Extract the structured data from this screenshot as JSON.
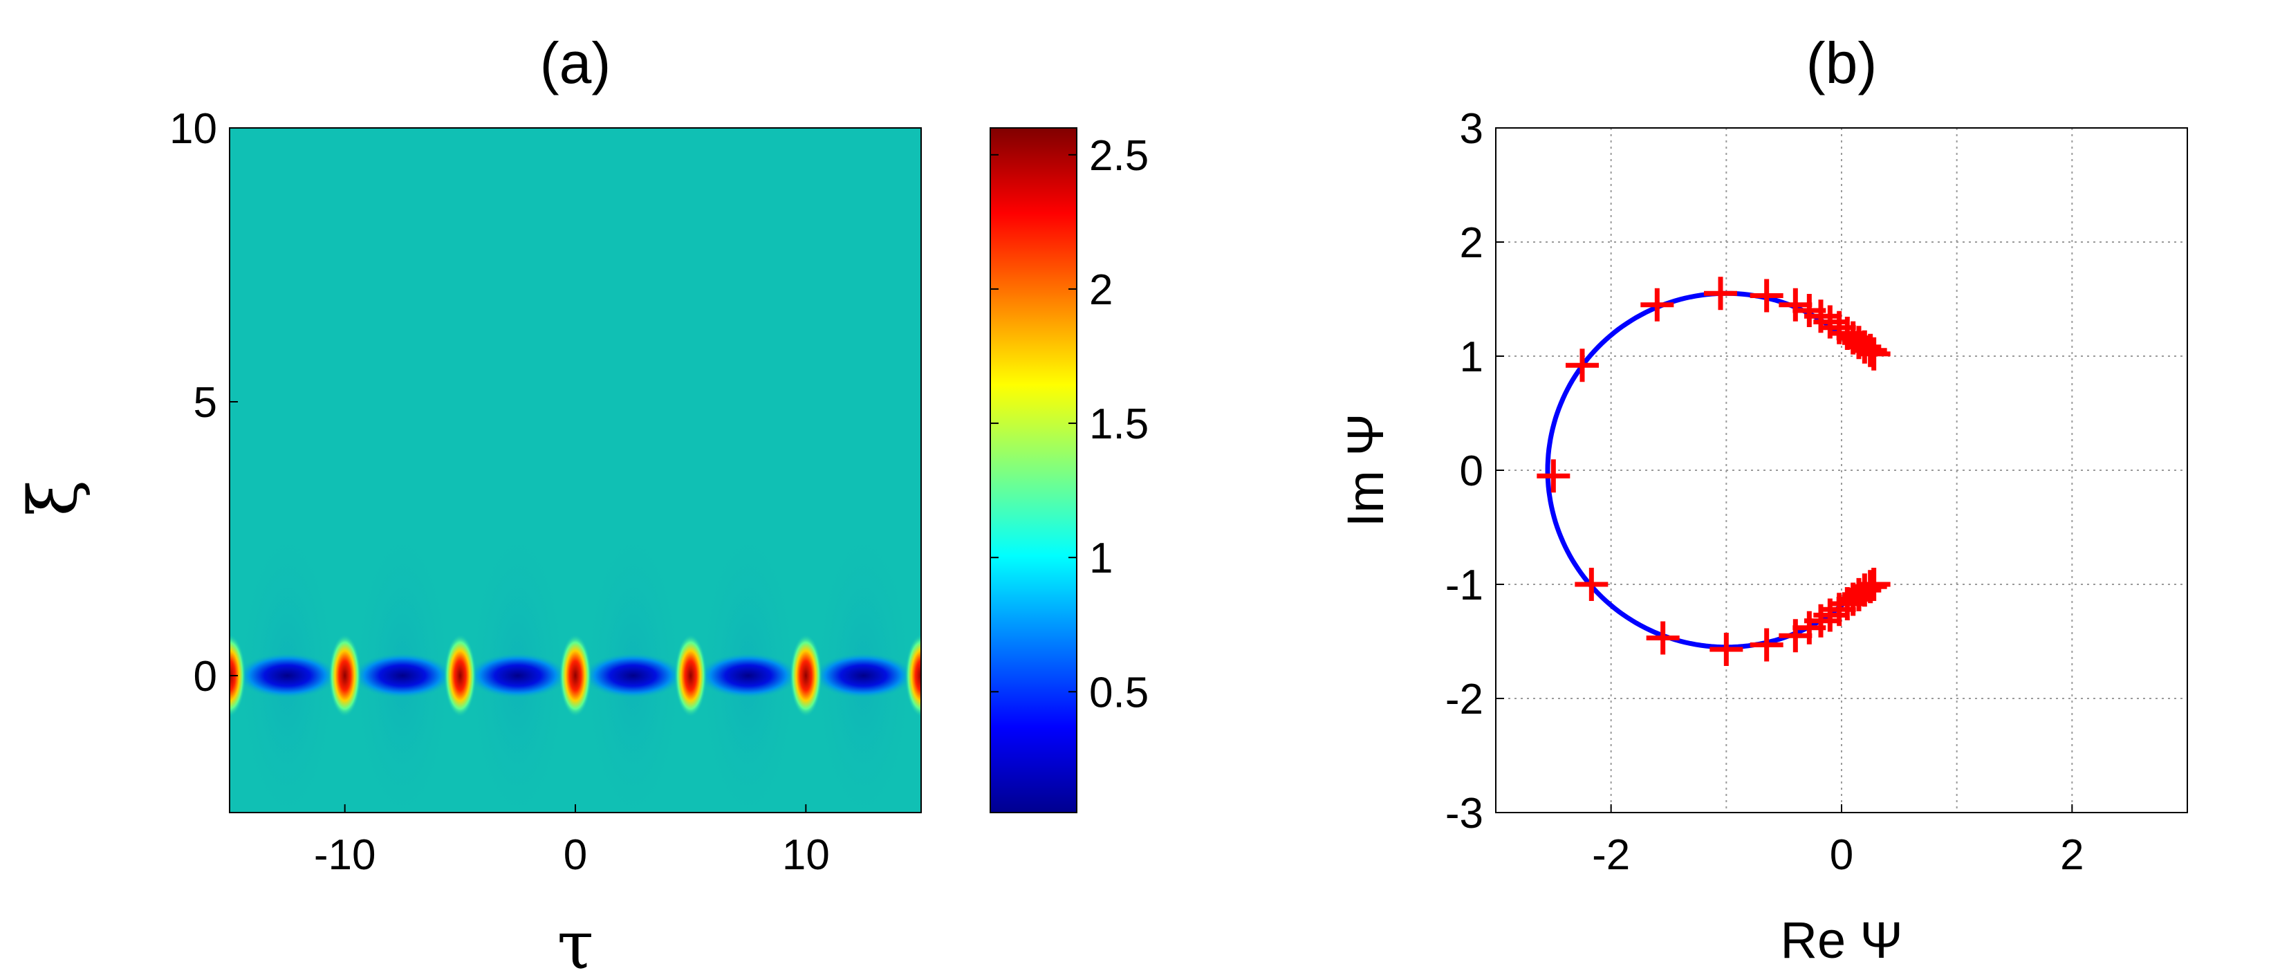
{
  "chart_data": [
    {
      "panel": "(a)",
      "type": "heatmap",
      "title": "(a)",
      "xlabel": "τ",
      "ylabel": "ξ",
      "xlim": [
        -15,
        15
      ],
      "ylim": [
        -2.5,
        10
      ],
      "xticks": [
        -10,
        0,
        10
      ],
      "yticks": [
        0,
        5,
        10
      ],
      "peaks": {
        "tau": [
          -15,
          -10,
          -5,
          0,
          5,
          10,
          15
        ],
        "xi": 0,
        "peak_value": 2.5,
        "background_value": 1.0,
        "minimum_value": 0.05
      },
      "colorbar": {
        "colormap": "jet",
        "range": [
          0.05,
          2.6
        ],
        "ticks": [
          0.5,
          1,
          1.5,
          2,
          2.5
        ]
      }
    },
    {
      "panel": "(b)",
      "type": "scatter",
      "title": "(b)",
      "xlabel": "Re Ψ",
      "ylabel": "Im Ψ",
      "xlim": [
        -3,
        3
      ],
      "ylim": [
        -3,
        3
      ],
      "xticks": [
        -2,
        0,
        2
      ],
      "yticks": [
        -3,
        -2,
        -1,
        0,
        1,
        2,
        3
      ],
      "grid": true,
      "series": [
        {
          "kind": "line",
          "color": "#0000ff",
          "circle_center": [
            -1,
            0
          ],
          "circle_radius": 1.55,
          "endpoints": [
            [
              0.1,
              1.05
            ],
            [
              0.1,
              -1.05
            ]
          ]
        },
        {
          "kind": "markers",
          "marker": "+",
          "color": "#ff0000",
          "points": [
            [
              -2.5,
              -0.05
            ],
            [
              -2.25,
              0.92
            ],
            [
              -2.17,
              -1.0
            ],
            [
              -1.6,
              1.45
            ],
            [
              -1.55,
              -1.47
            ],
            [
              -1.05,
              1.55
            ],
            [
              -1.0,
              -1.57
            ],
            [
              -0.65,
              1.53
            ],
            [
              -0.65,
              -1.53
            ],
            [
              -0.4,
              1.45
            ],
            [
              -0.4,
              -1.45
            ],
            [
              -0.28,
              1.4
            ],
            [
              -0.28,
              -1.38
            ],
            [
              -0.18,
              1.35
            ],
            [
              -0.18,
              -1.32
            ],
            [
              -0.1,
              1.3
            ],
            [
              -0.1,
              -1.27
            ],
            [
              -0.02,
              1.25
            ],
            [
              -0.02,
              -1.22
            ],
            [
              0.05,
              1.2
            ],
            [
              0.05,
              -1.17
            ],
            [
              0.1,
              1.16
            ],
            [
              0.1,
              -1.13
            ],
            [
              0.15,
              1.12
            ],
            [
              0.15,
              -1.09
            ],
            [
              0.2,
              1.08
            ],
            [
              0.2,
              -1.05
            ],
            [
              0.25,
              1.05
            ],
            [
              0.25,
              -1.02
            ],
            [
              0.28,
              1.02
            ],
            [
              0.28,
              -1.0
            ]
          ]
        }
      ]
    }
  ]
}
